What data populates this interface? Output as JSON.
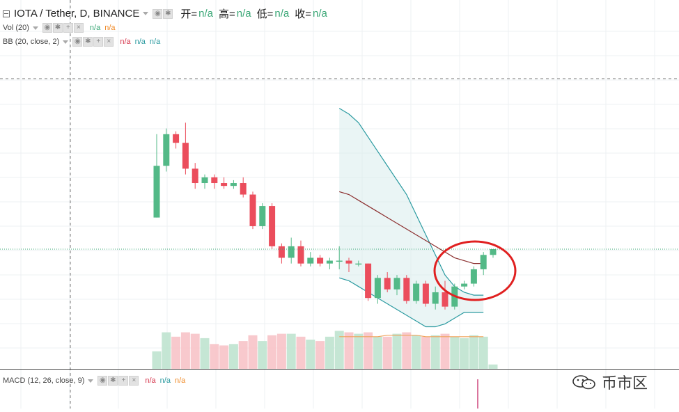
{
  "header": {
    "symbol": "IOTA / Tether, D, BINANCE",
    "ohlc": [
      {
        "label": "开=",
        "value": "n/a"
      },
      {
        "label": "高=",
        "value": "n/a"
      },
      {
        "label": "低=",
        "value": "n/a"
      },
      {
        "label": "收=",
        "value": "n/a"
      }
    ]
  },
  "indicators": {
    "vol": {
      "label": "Vol (20)",
      "values": [
        "n/a",
        "n/a"
      ]
    },
    "bb": {
      "label": "BB (20, close, 2)",
      "values": [
        "n/a",
        "n/a",
        "n/a"
      ]
    },
    "macd": {
      "label": "MACD (12, 26, close, 9)",
      "values": [
        "n/a",
        "n/a",
        "n/a"
      ]
    }
  },
  "watermark": {
    "text": "币市区"
  },
  "colors": {
    "up": "#53b987",
    "down": "#eb4d5c",
    "bb_basis": "#8b2e2e",
    "bb_band": "#2a9aa0",
    "vol_ma": "#f0a35a",
    "highlight": "#e02020"
  },
  "chart_data": {
    "type": "candlestick",
    "price_range": [
      0,
      100
    ],
    "volume_range": [
      0,
      100
    ],
    "candles": [
      {
        "o": 34,
        "h": 63,
        "l": 34,
        "c": 52,
        "v": 12
      },
      {
        "o": 52,
        "h": 65,
        "l": 50,
        "c": 63,
        "v": 25
      },
      {
        "o": 63,
        "h": 64,
        "l": 58,
        "c": 60,
        "v": 22
      },
      {
        "o": 60,
        "h": 67,
        "l": 49,
        "c": 51,
        "v": 25
      },
      {
        "o": 51,
        "h": 53,
        "l": 44,
        "c": 46,
        "v": 24
      },
      {
        "o": 46,
        "h": 49,
        "l": 44,
        "c": 48,
        "v": 21
      },
      {
        "o": 48,
        "h": 49,
        "l": 44,
        "c": 46,
        "v": 17
      },
      {
        "o": 46,
        "h": 48,
        "l": 44,
        "c": 45,
        "v": 16
      },
      {
        "o": 45,
        "h": 47,
        "l": 44,
        "c": 46,
        "v": 17
      },
      {
        "o": 46,
        "h": 48,
        "l": 41,
        "c": 42,
        "v": 19
      },
      {
        "o": 42,
        "h": 43,
        "l": 30,
        "c": 31,
        "v": 23
      },
      {
        "o": 31,
        "h": 39,
        "l": 30,
        "c": 38,
        "v": 19
      },
      {
        "o": 38,
        "h": 39,
        "l": 23,
        "c": 24,
        "v": 23
      },
      {
        "o": 24,
        "h": 25,
        "l": 18,
        "c": 20,
        "v": 24
      },
      {
        "o": 20,
        "h": 27,
        "l": 18,
        "c": 24,
        "v": 24
      },
      {
        "o": 24,
        "h": 26,
        "l": 17,
        "c": 18,
        "v": 22
      },
      {
        "o": 18,
        "h": 22,
        "l": 17,
        "c": 20,
        "v": 20
      },
      {
        "o": 20,
        "h": 21,
        "l": 17,
        "c": 18,
        "v": 19
      },
      {
        "o": 18,
        "h": 20,
        "l": 16,
        "c": 19,
        "v": 22
      },
      {
        "o": 19,
        "h": 24,
        "l": 16,
        "c": 19,
        "v": 26
      },
      {
        "o": 19,
        "h": 20,
        "l": 15,
        "c": 18,
        "v": 25
      },
      {
        "o": 18,
        "h": 19,
        "l": 17,
        "c": 18,
        "v": 24
      },
      {
        "o": 18,
        "h": 18,
        "l": 5,
        "c": 6,
        "v": 25
      },
      {
        "o": 6,
        "h": 14,
        "l": 4,
        "c": 13,
        "v": 22
      },
      {
        "o": 13,
        "h": 15,
        "l": 8,
        "c": 9,
        "v": 22
      },
      {
        "o": 9,
        "h": 14,
        "l": 7,
        "c": 13,
        "v": 24
      },
      {
        "o": 13,
        "h": 14,
        "l": 4,
        "c": 5,
        "v": 25
      },
      {
        "o": 5,
        "h": 12,
        "l": 4,
        "c": 11,
        "v": 23
      },
      {
        "o": 11,
        "h": 12,
        "l": 3,
        "c": 4,
        "v": 22
      },
      {
        "o": 4,
        "h": 10,
        "l": 2,
        "c": 8,
        "v": 23
      },
      {
        "o": 8,
        "h": 12,
        "l": 2,
        "c": 3,
        "v": 24
      },
      {
        "o": 3,
        "h": 11,
        "l": 2,
        "c": 10,
        "v": 22
      },
      {
        "o": 10,
        "h": 12,
        "l": 9,
        "c": 11,
        "v": 21
      },
      {
        "o": 11,
        "h": 17,
        "l": 10,
        "c": 16,
        "v": 23
      },
      {
        "o": 16,
        "h": 22,
        "l": 14,
        "c": 21,
        "v": 22
      },
      {
        "o": 21,
        "h": 23,
        "l": 20,
        "c": 23,
        "v": 3
      }
    ],
    "bb_upper": [
      null,
      null,
      null,
      null,
      null,
      null,
      null,
      null,
      null,
      null,
      null,
      null,
      null,
      null,
      null,
      null,
      null,
      null,
      null,
      72,
      70,
      67,
      62,
      57,
      52,
      47,
      42,
      35,
      28,
      21,
      14,
      10,
      8,
      7,
      7,
      null
    ],
    "bb_basis": [
      null,
      null,
      null,
      null,
      null,
      null,
      null,
      null,
      null,
      null,
      null,
      null,
      null,
      null,
      null,
      null,
      null,
      null,
      null,
      43,
      42,
      40,
      38,
      36,
      34,
      32,
      30,
      28,
      26,
      24,
      22,
      20,
      19,
      18,
      18,
      null
    ],
    "bb_lower": [
      null,
      null,
      null,
      null,
      null,
      null,
      null,
      null,
      null,
      null,
      null,
      null,
      null,
      null,
      null,
      null,
      null,
      null,
      null,
      13,
      12,
      10,
      8,
      6,
      4,
      2,
      0,
      -2,
      -4,
      -4,
      -3,
      -1,
      1,
      1,
      1,
      null
    ],
    "vol_ma": [
      null,
      null,
      null,
      null,
      null,
      null,
      null,
      null,
      null,
      null,
      null,
      null,
      null,
      null,
      null,
      null,
      null,
      null,
      null,
      22,
      22,
      22,
      22,
      22,
      23,
      23,
      23,
      23,
      22,
      22,
      22,
      22,
      22,
      22,
      22,
      null
    ]
  }
}
